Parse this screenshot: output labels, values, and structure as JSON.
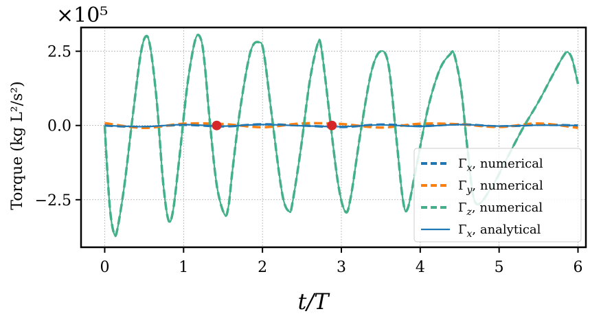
{
  "chart_data": {
    "type": "line",
    "xlabel": "t/T",
    "ylabel": "Torque (kg L²/s²)",
    "y_scale_label": "×10⁵",
    "xlim": [
      -0.3,
      6.1
    ],
    "ylim": [
      -4.1,
      3.3
    ],
    "y_scale_factor": 100000,
    "x_ticks": [
      0,
      1,
      2,
      3,
      4,
      5,
      6
    ],
    "y_ticks": [
      -2.5,
      0.0,
      2.5
    ],
    "y_tick_labels": [
      "−2.5",
      "0.0",
      "2.5"
    ],
    "grid": true,
    "legend_position": "bottom-right",
    "series": [
      {
        "name": "Γx, numerical",
        "name_main": "Γ",
        "name_sub": "x",
        "name_suffix": ", numerical",
        "color": "#1f77b4",
        "style": "dashed",
        "x": [
          0,
          0.5,
          1.0,
          1.5,
          2.0,
          2.5,
          3.0,
          3.5,
          4.0,
          4.5,
          5.0,
          5.5,
          6.0
        ],
        "y": [
          0.0,
          -0.05,
          0.02,
          -0.03,
          0.04,
          0.0,
          -0.05,
          0.03,
          -0.02,
          0.04,
          -0.03,
          0.02,
          0.0
        ]
      },
      {
        "name": "Γy, numerical",
        "name_main": "Γ",
        "name_sub": "y",
        "name_suffix": ", numerical",
        "color": "#ff7f0e",
        "style": "dashed",
        "x": [
          0,
          0.5,
          1.0,
          1.5,
          2.0,
          2.5,
          3.0,
          3.5,
          4.0,
          4.5,
          5.0,
          5.5,
          6.0
        ],
        "y": [
          0.08,
          -0.08,
          0.06,
          0.05,
          -0.06,
          0.07,
          0.05,
          -0.07,
          0.06,
          0.04,
          -0.05,
          0.07,
          -0.08
        ]
      },
      {
        "name": "Γz, numerical",
        "name_main": "Γ",
        "name_sub": "z",
        "name_suffix": ", numerical",
        "color": "#44b08a",
        "style": "dashed",
        "x": [
          0,
          0.03,
          0.07,
          0.12,
          0.16,
          0.25,
          0.35,
          0.45,
          0.52,
          0.58,
          0.66,
          0.74,
          0.81,
          0.87,
          0.95,
          1.05,
          1.15,
          1.22,
          1.27,
          1.33,
          1.42,
          1.52,
          1.57,
          1.62,
          1.72,
          1.85,
          1.96,
          2.02,
          2.12,
          2.25,
          2.34,
          2.38,
          2.48,
          2.6,
          2.7,
          2.74,
          2.8,
          2.95,
          3.05,
          3.12,
          3.24,
          3.38,
          3.5,
          3.6,
          3.7,
          3.78,
          3.84,
          3.95,
          4.1,
          4.25,
          4.38,
          4.43,
          4.52,
          4.6,
          4.7,
          4.9,
          5.1,
          5.3,
          5.5,
          5.7,
          5.83,
          5.88,
          5.93,
          6.0
        ],
        "y": [
          0.0,
          -1.4,
          -2.9,
          -3.65,
          -3.5,
          -2.0,
          0.2,
          2.3,
          3.0,
          2.6,
          0.8,
          -1.9,
          -3.2,
          -2.8,
          -1.0,
          1.4,
          2.9,
          2.9,
          2.0,
          0.2,
          -2.0,
          -3.0,
          -2.7,
          -1.5,
          0.6,
          2.5,
          2.8,
          2.4,
          0.3,
          -2.3,
          -2.9,
          -2.6,
          -0.9,
          1.5,
          2.75,
          2.7,
          1.5,
          -1.8,
          -2.9,
          -2.4,
          -0.3,
          1.8,
          2.5,
          2.0,
          -0.5,
          -2.5,
          -2.8,
          -1.4,
          0.6,
          1.9,
          2.4,
          2.4,
          1.2,
          -0.8,
          -2.6,
          -2.1,
          -1.1,
          -0.1,
          0.8,
          1.8,
          2.4,
          2.45,
          2.2,
          1.4
        ]
      },
      {
        "name": "Γx, analytical",
        "name_main": "Γ",
        "name_sub": "x",
        "name_suffix": ", analytical",
        "color": "#1f77b4",
        "style": "solid",
        "x": [
          0,
          0.5,
          1.0,
          1.5,
          2.0,
          2.5,
          3.0,
          3.5,
          4.0,
          4.5,
          5.0,
          5.5,
          6.0
        ],
        "y": [
          0.0,
          -0.04,
          0.03,
          -0.02,
          0.03,
          -0.01,
          -0.04,
          0.02,
          -0.03,
          0.03,
          -0.02,
          0.01,
          0.0
        ]
      }
    ],
    "markers": {
      "color": "#d62728",
      "points": [
        [
          1.42,
          0.0
        ],
        [
          2.88,
          0.0
        ]
      ]
    }
  }
}
